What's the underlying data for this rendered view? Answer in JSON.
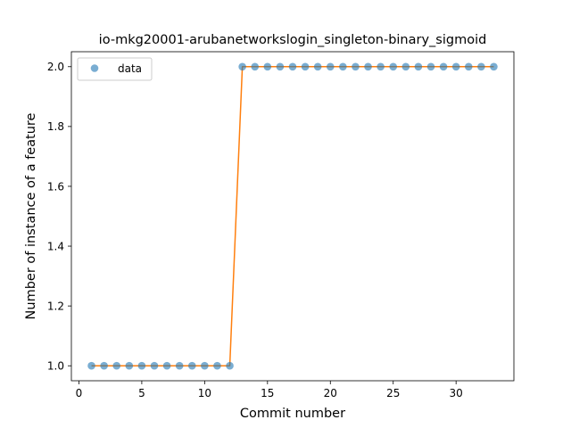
{
  "chart_data": {
    "type": "scatter",
    "title": "io-mkg20001-arubanetworkslogin_singleton-binary_sigmoid",
    "xlabel": "Commit number",
    "ylabel": "Number of instance of a feature",
    "xlim": [
      -0.6,
      34.6
    ],
    "ylim": [
      0.95,
      2.05
    ],
    "xticks": [
      0,
      5,
      10,
      15,
      20,
      25,
      30
    ],
    "yticks": [
      1.0,
      1.2,
      1.4,
      1.6,
      1.8,
      2.0
    ],
    "xtick_labels": [
      "0",
      "5",
      "10",
      "15",
      "20",
      "25",
      "30"
    ],
    "ytick_labels": [
      "1.0",
      "1.2",
      "1.4",
      "1.6",
      "1.8",
      "2.0"
    ],
    "legend": {
      "position": "top-left",
      "entries": [
        "data"
      ]
    },
    "grid": false,
    "series": [
      {
        "name": "data",
        "kind": "points",
        "color": "#1f77b4",
        "x": [
          1,
          2,
          3,
          4,
          5,
          6,
          7,
          8,
          9,
          10,
          11,
          12,
          13,
          14,
          15,
          16,
          17,
          18,
          19,
          20,
          21,
          22,
          23,
          24,
          25,
          26,
          27,
          28,
          29,
          30,
          31,
          32,
          33
        ],
        "y": [
          1,
          1,
          1,
          1,
          1,
          1,
          1,
          1,
          1,
          1,
          1,
          1,
          2,
          2,
          2,
          2,
          2,
          2,
          2,
          2,
          2,
          2,
          2,
          2,
          2,
          2,
          2,
          2,
          2,
          2,
          2,
          2,
          2
        ]
      },
      {
        "kind": "line",
        "color": "#ff7f0e",
        "x": [
          1,
          2,
          3,
          4,
          5,
          6,
          7,
          8,
          9,
          10,
          11,
          12,
          13,
          14,
          15,
          16,
          17,
          18,
          19,
          20,
          21,
          22,
          23,
          24,
          25,
          26,
          27,
          28,
          29,
          30,
          31,
          32,
          33
        ],
        "y": [
          1,
          1,
          1,
          1,
          1,
          1,
          1,
          1,
          1,
          1,
          1,
          1,
          2,
          2,
          2,
          2,
          2,
          2,
          2,
          2,
          2,
          2,
          2,
          2,
          2,
          2,
          2,
          2,
          2,
          2,
          2,
          2,
          2
        ]
      }
    ]
  }
}
